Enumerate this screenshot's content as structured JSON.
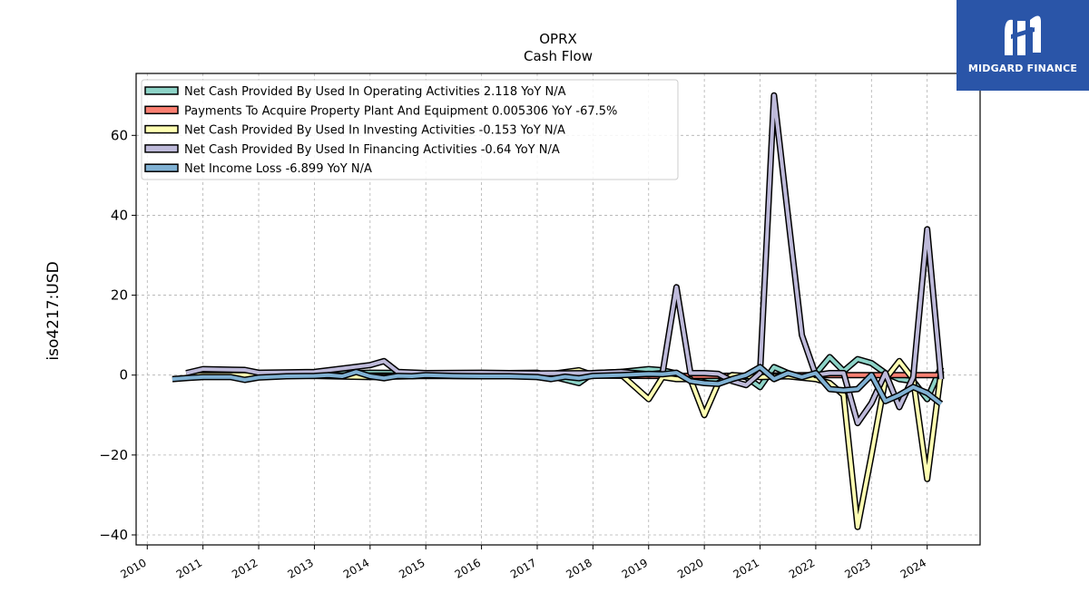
{
  "chart_data": {
    "type": "line",
    "title": "OPRX",
    "subtitle": "Cash Flow",
    "ylabel": "iso4217:USD",
    "xlabel": "",
    "xlim": [
      2009.8,
      2024.95
    ],
    "ylim": [
      -42.5,
      75.5
    ],
    "yticks": [
      -40,
      -20,
      0,
      20,
      40,
      60
    ],
    "xticks": [
      "2010",
      "2011",
      "2012",
      "2013",
      "2014",
      "2015",
      "2016",
      "2017",
      "2018",
      "2019",
      "2020",
      "2021",
      "2022",
      "2023",
      "2024"
    ],
    "grid": true,
    "legend_position": "top-left",
    "series": [
      {
        "name": "Net Cash Provided By Used In Operating Activities  2.118 YoY N/A",
        "color": "#8dd3c7",
        "x": [
          2010.7,
          2011.0,
          2011.75,
          2012.0,
          2013.0,
          2014.0,
          2015.0,
          2016.0,
          2017.0,
          2017.75,
          2018.0,
          2018.5,
          2019.0,
          2019.25,
          2019.5,
          2019.75,
          2020.0,
          2020.25,
          2020.5,
          2020.75,
          2021.0,
          2021.25,
          2021.5,
          2021.75,
          2022.0,
          2022.25,
          2022.5,
          2022.75,
          2023.0,
          2023.25,
          2023.5,
          2023.75,
          2024.0,
          2024.25
        ],
        "y": [
          0.2,
          0.3,
          0.5,
          0.4,
          0.3,
          0.6,
          0.5,
          0.4,
          0.6,
          -2.0,
          0.5,
          0.8,
          1.5,
          1.2,
          0.4,
          -1.0,
          -0.5,
          -1.5,
          0.0,
          -0.5,
          -3.0,
          2.0,
          0.5,
          -0.5,
          0.3,
          4.5,
          1.0,
          4.0,
          3.0,
          0.5,
          -1.0,
          -1.5,
          -6.0,
          2.0
        ]
      },
      {
        "name": "Payments To Acquire Property Plant And Equipment  0.005306 YoY -67.5%",
        "color": "#fb8072",
        "x": [
          2010.7,
          2012.0,
          2014.0,
          2016.0,
          2018.0,
          2019.0,
          2020.0,
          2021.0,
          2022.0,
          2022.5,
          2023.0,
          2023.5,
          2024.0,
          2024.25
        ],
        "y": [
          0.0,
          0.0,
          -0.1,
          -0.1,
          -0.1,
          -0.2,
          -0.2,
          -0.1,
          0.0,
          0.0,
          0.0,
          0.0,
          0.0,
          0.0
        ]
      },
      {
        "name": "Net Cash Provided By Used In Investing Activities  -0.153 YoY N/A",
        "color": "#ffffb3",
        "x": [
          2010.7,
          2012.0,
          2013.0,
          2014.0,
          2015.0,
          2016.0,
          2017.0,
          2017.75,
          2018.0,
          2018.5,
          2019.0,
          2019.25,
          2019.5,
          2019.75,
          2020.0,
          2020.25,
          2020.5,
          2021.0,
          2021.5,
          2022.0,
          2022.25,
          2022.5,
          2022.75,
          2023.0,
          2023.25,
          2023.5,
          2023.75,
          2024.0,
          2024.25
        ],
        "y": [
          0.0,
          0.0,
          -0.2,
          -0.5,
          -0.2,
          -0.3,
          -0.2,
          1.2,
          0.0,
          0.2,
          -6.0,
          -0.5,
          -1.0,
          -1.0,
          -10.0,
          -2.0,
          0.0,
          -0.5,
          -0.3,
          -1.0,
          -2.0,
          -5.0,
          -38.0,
          -20.0,
          -1.0,
          3.5,
          -1.0,
          -26.0,
          1.0
        ]
      },
      {
        "name": "Net Cash Provided By Used In Financing Activities  -0.64 YoY N/A",
        "color": "#bebada",
        "x": [
          2010.7,
          2011.0,
          2011.75,
          2012.0,
          2013.0,
          2014.0,
          2014.25,
          2014.5,
          2015.0,
          2016.0,
          2017.0,
          2018.0,
          2018.5,
          2019.0,
          2019.25,
          2019.5,
          2019.75,
          2020.0,
          2020.25,
          2020.5,
          2020.75,
          2021.0,
          2021.25,
          2021.5,
          2021.75,
          2022.0,
          2022.25,
          2022.5,
          2022.75,
          2023.0,
          2023.25,
          2023.5,
          2023.75,
          2024.0,
          2024.25
        ],
        "y": [
          0.5,
          1.5,
          1.3,
          0.6,
          0.8,
          2.5,
          3.5,
          0.8,
          0.5,
          0.6,
          0.4,
          0.5,
          0.8,
          0.2,
          0.5,
          22.0,
          0.5,
          0.5,
          0.3,
          -1.5,
          -2.5,
          0.5,
          70.0,
          40.0,
          10.0,
          0.0,
          0.5,
          0.5,
          -12.0,
          -7.0,
          0.5,
          -8.0,
          -0.5,
          36.5,
          -1.0
        ]
      },
      {
        "name": "Net Income Loss  -6.899 YoY N/A",
        "color": "#80b1d3",
        "x": [
          2010.45,
          2010.75,
          2011.0,
          2011.5,
          2011.75,
          2012.0,
          2012.5,
          2013.0,
          2013.25,
          2013.5,
          2013.75,
          2014.0,
          2014.25,
          2014.5,
          2014.75,
          2015.0,
          2015.5,
          2016.0,
          2016.5,
          2017.0,
          2017.25,
          2017.5,
          2017.75,
          2018.0,
          2018.5,
          2019.0,
          2019.25,
          2019.5,
          2019.75,
          2020.0,
          2020.25,
          2020.5,
          2020.75,
          2021.0,
          2021.25,
          2021.5,
          2021.75,
          2022.0,
          2022.25,
          2022.5,
          2022.75,
          2023.0,
          2023.25,
          2023.5,
          2023.75,
          2024.0,
          2024.25
        ],
        "y": [
          -1.0,
          -0.7,
          -0.5,
          -0.5,
          -1.2,
          -0.6,
          -0.3,
          -0.2,
          0.0,
          -0.3,
          0.8,
          -0.3,
          -0.8,
          -0.2,
          -0.3,
          0.0,
          -0.2,
          -0.3,
          -0.3,
          -0.5,
          -1.0,
          -0.4,
          -0.8,
          -0.2,
          0.0,
          0.3,
          0.2,
          0.6,
          -1.5,
          -2.0,
          -2.2,
          -1.0,
          0.0,
          2.0,
          -1.0,
          0.5,
          -0.5,
          0.5,
          -3.5,
          -3.8,
          -3.5,
          0.0,
          -6.5,
          -5.0,
          -3.0,
          -4.5,
          -7.2
        ]
      }
    ]
  },
  "branding": {
    "logo_text": "MIDGARD FINANCE",
    "logo_color": "#2a55a8"
  }
}
